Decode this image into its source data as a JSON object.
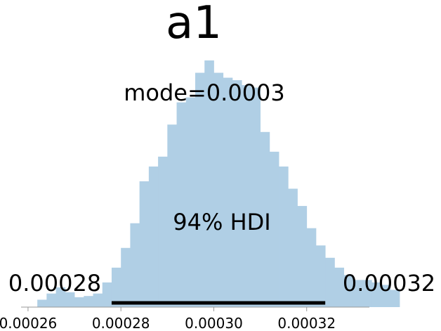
{
  "chart_data": {
    "type": "bar",
    "title": "a1",
    "xlabel": "",
    "ylabel": "",
    "xlim": [
      0.0002585,
      0.0003335
    ],
    "ylim": [
      0,
      1.0
    ],
    "grid": false,
    "x_ticks": [
      0.00026,
      0.00028,
      0.0003,
      0.00032
    ],
    "x_tick_labels": [
      "0.00026",
      "0.00028",
      "0.00030",
      "0.00032"
    ],
    "bar_color": "#b0cfe5",
    "hdi_color": "#000000",
    "bins": {
      "start": 0.000262,
      "width": 2e-06,
      "heights": [
        0.03,
        0.055,
        0.08,
        0.06,
        0.04,
        0.045,
        0.055,
        0.1,
        0.16,
        0.24,
        0.34,
        0.51,
        0.57,
        0.61,
        0.74,
        0.83,
        0.85,
        0.95,
        1.0,
        0.95,
        0.93,
        0.92,
        0.9,
        0.89,
        0.71,
        0.63,
        0.57,
        0.48,
        0.41,
        0.32,
        0.25,
        0.2,
        0.16,
        0.13,
        0.11,
        0.11,
        0.1,
        0.09,
        0.07
      ]
    },
    "mode_label": "mode=0.0003",
    "hdi": {
      "label": "94% HDI",
      "low": 0.000278,
      "high": 0.000324,
      "low_label": "0.00028",
      "high_label": "0.00032"
    }
  }
}
